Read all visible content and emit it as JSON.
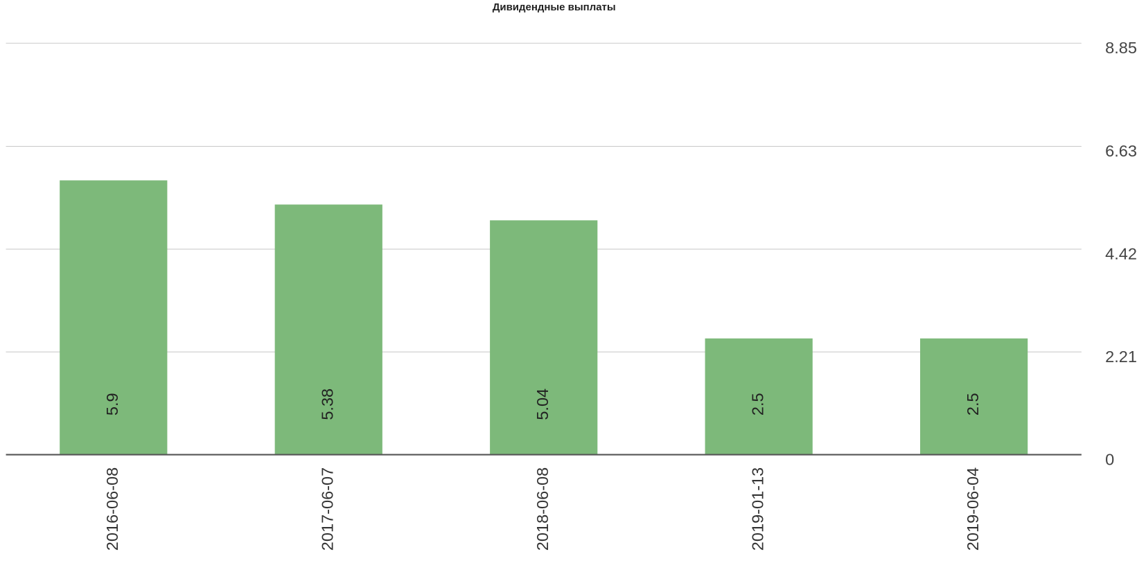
{
  "chart_data": {
    "type": "bar",
    "title": "Дивидендные выплаты",
    "categories": [
      "2016-06-08",
      "2017-06-07",
      "2018-06-08",
      "2019-01-13",
      "2019-06-04"
    ],
    "values": [
      5.9,
      5.38,
      5.04,
      2.5,
      2.5
    ],
    "color": "#7db97a",
    "ylim": [
      0,
      8.85
    ],
    "yticks": [
      0,
      2.21,
      4.42,
      6.63,
      8.85
    ],
    "grid": true
  }
}
